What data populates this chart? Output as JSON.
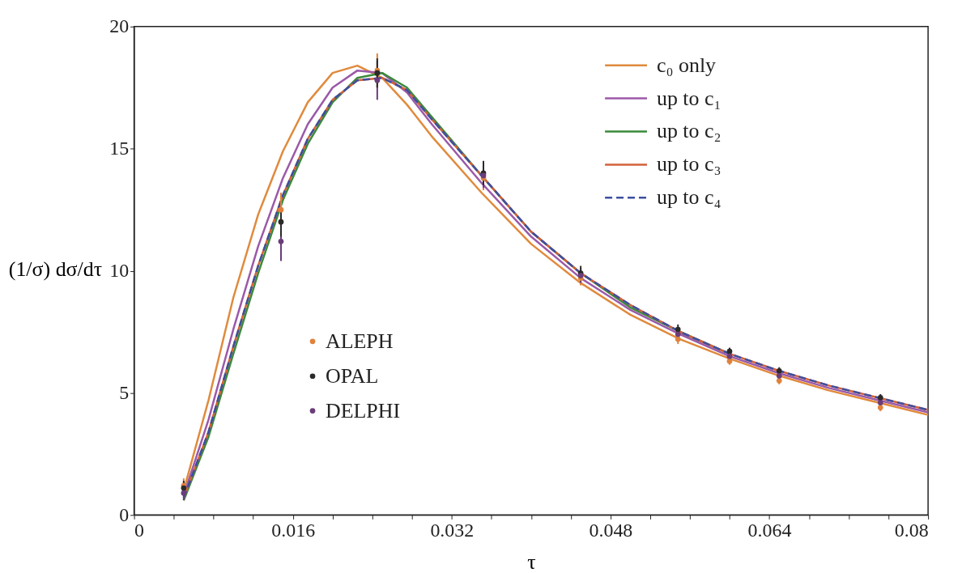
{
  "chart_data": {
    "type": "line",
    "xlabel": "τ",
    "ylabel": "(1/σ) dσ/dτ",
    "xlim": [
      0,
      0.08
    ],
    "ylim": [
      0,
      20
    ],
    "xticks": [
      0,
      {
        "value": 0.004,
        "label": null
      },
      {
        "value": 0.008,
        "label": null
      },
      {
        "value": 0.012,
        "label": null
      },
      0.016,
      {
        "value": 0.02,
        "label": null
      },
      {
        "value": 0.024,
        "label": null
      },
      {
        "value": 0.028,
        "label": null
      },
      0.032,
      {
        "value": 0.036,
        "label": null
      },
      {
        "value": 0.04,
        "label": null
      },
      {
        "value": 0.044,
        "label": null
      },
      0.048,
      {
        "value": 0.052,
        "label": null
      },
      {
        "value": 0.056,
        "label": null
      },
      {
        "value": 0.06,
        "label": null
      },
      0.064,
      {
        "value": 0.068,
        "label": null
      },
      {
        "value": 0.072,
        "label": null
      },
      {
        "value": 0.076,
        "label": null
      },
      0.08
    ],
    "yticks": [
      0,
      5,
      10,
      15,
      20
    ],
    "x": [
      0.005,
      0.0075,
      0.01,
      0.0125,
      0.015,
      0.0175,
      0.02,
      0.0225,
      0.025,
      0.0275,
      0.03,
      0.035,
      0.04,
      0.045,
      0.05,
      0.055,
      0.06,
      0.065,
      0.07,
      0.075,
      0.08
    ],
    "legend": "top right",
    "grid": false,
    "series": [
      {
        "name": "c₀ only",
        "color": "#e08a3c",
        "line_style": "solid",
        "values": [
          1.0,
          4.7,
          8.9,
          12.3,
          14.9,
          16.9,
          18.1,
          18.4,
          17.9,
          16.8,
          15.5,
          13.2,
          11.1,
          9.5,
          8.2,
          7.2,
          6.4,
          5.7,
          5.1,
          4.6,
          4.1
        ]
      },
      {
        "name": "up to c₁",
        "color": "#9b59a8",
        "line_style": "solid",
        "values": [
          0.8,
          3.9,
          7.6,
          11.0,
          13.8,
          16.0,
          17.5,
          18.2,
          18.1,
          17.3,
          16.0,
          13.6,
          11.4,
          9.7,
          8.4,
          7.4,
          6.5,
          5.8,
          5.2,
          4.7,
          4.2
        ]
      },
      {
        "name": "up to c₂",
        "color": "#3a8a3a",
        "line_style": "solid",
        "values": [
          0.6,
          3.2,
          6.6,
          9.9,
          12.9,
          15.2,
          16.9,
          17.9,
          18.1,
          17.5,
          16.3,
          13.9,
          11.6,
          9.9,
          8.5,
          7.5,
          6.6,
          null,
          null,
          null,
          null
        ]
      },
      {
        "name": "up to c₃",
        "color": "#d2603a",
        "line_style": "solid",
        "values": [
          0.7,
          3.4,
          6.9,
          10.2,
          13.1,
          15.4,
          17.0,
          17.8,
          17.9,
          17.4,
          16.2,
          13.9,
          11.6,
          9.9,
          8.6,
          7.5,
          6.6,
          5.9,
          5.3,
          4.8,
          4.3
        ]
      },
      {
        "name": "up to c₄",
        "color": "#3c4fa0",
        "line_style": "dashed",
        "values": [
          0.7,
          3.4,
          6.9,
          10.2,
          13.1,
          15.4,
          17.0,
          17.8,
          17.9,
          17.4,
          16.2,
          13.9,
          11.6,
          9.9,
          8.6,
          7.5,
          6.6,
          5.9,
          5.3,
          4.8,
          4.3
        ]
      },
      {
        "name": "ALEPH",
        "type": "scatter",
        "marker": "circle",
        "color": "#e0823c",
        "x": [
          0.005,
          0.0148,
          0.0245,
          0.0352,
          0.045,
          0.0548,
          0.06,
          0.065,
          0.0752
        ],
        "values": [
          1.2,
          12.5,
          18.2,
          13.8,
          9.7,
          7.2,
          6.3,
          5.5,
          4.4
        ],
        "errors": [
          0.3,
          [
            12.4,
            13.2
          ],
          0.7,
          0.5,
          0.3,
          0.2,
          0.15,
          0.15,
          0.15
        ]
      },
      {
        "name": "OPAL",
        "type": "scatter",
        "marker": "circle",
        "color": "#2a2a2a",
        "x": [
          0.005,
          0.0148,
          0.0245,
          0.0352,
          0.045,
          0.0548,
          0.06,
          0.065,
          0.0752
        ],
        "values": [
          1.1,
          12.0,
          18.1,
          14.0,
          9.9,
          7.6,
          6.7,
          5.9,
          4.8
        ],
        "errors": [
          0.3,
          0.6,
          0.6,
          0.5,
          0.3,
          0.2,
          0.15,
          0.15,
          0.15
        ]
      },
      {
        "name": "DELPHI",
        "type": "scatter",
        "marker": "circle",
        "color": "#6a3d7a",
        "x": [
          0.005,
          0.0148,
          0.0245,
          0.0352,
          0.045,
          0.0548,
          0.06,
          0.065,
          0.0752
        ],
        "values": [
          0.9,
          11.2,
          17.8,
          13.9,
          9.8,
          7.4,
          6.5,
          5.7,
          4.6
        ],
        "errors": [
          0.3,
          0.8,
          0.8,
          0.5,
          0.3,
          0.2,
          0.15,
          0.15,
          0.15
        ]
      }
    ]
  }
}
